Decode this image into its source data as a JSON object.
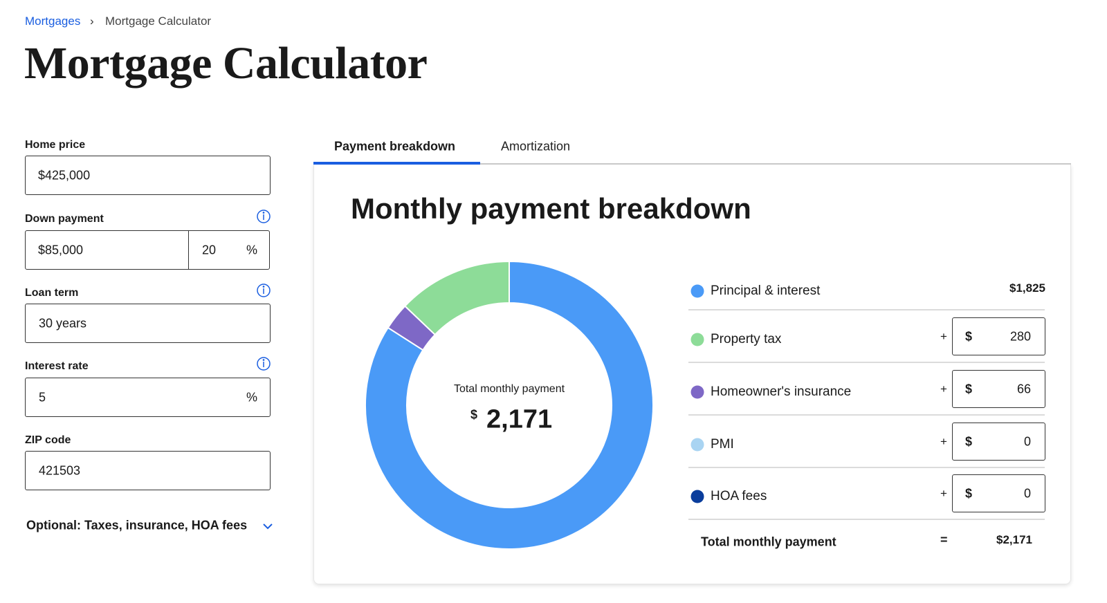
{
  "breadcrumb": {
    "items": [
      "Mortgages",
      "Mortgage Calculator"
    ],
    "separator": "›"
  },
  "title": "Mortgage Calculator",
  "form": {
    "home_price": {
      "label": "Home price",
      "value": "$425,000"
    },
    "down_payment": {
      "label": "Down payment",
      "amount": "$85,000",
      "percent": "20",
      "unit": "%"
    },
    "loan_term": {
      "label": "Loan term",
      "value": "30 years"
    },
    "interest_rate": {
      "label": "Interest rate",
      "value": "5",
      "unit": "%"
    },
    "zip_code": {
      "label": "ZIP code",
      "value": "421503"
    },
    "optional": "Optional: Taxes, insurance, HOA fees"
  },
  "tabs": [
    "Payment breakdown",
    "Amortization"
  ],
  "breakdown": {
    "title": "Monthly payment breakdown",
    "center_label": "Total monthly payment",
    "currency": "$",
    "total": 2171,
    "total_label": "2,171",
    "items": [
      {
        "name": "Principal & interest",
        "value": 1825,
        "value_label": "$1,825",
        "color": "#4a9af7"
      },
      {
        "name": "Property tax",
        "value": 280,
        "operator": "+",
        "color": "#8ddc98"
      },
      {
        "name": "Homeowner's insurance",
        "value": 66,
        "operator": "+",
        "color": "#7e68c6"
      },
      {
        "name": "PMI",
        "value": 0,
        "operator": "+",
        "color": "#a9d4f2"
      },
      {
        "name": "HOA fees",
        "value": 0,
        "operator": "+",
        "color": "#0a3d9c"
      }
    ],
    "total_row": {
      "label": "Total monthly payment",
      "operator": "=",
      "value_label": "$2,171"
    }
  }
}
